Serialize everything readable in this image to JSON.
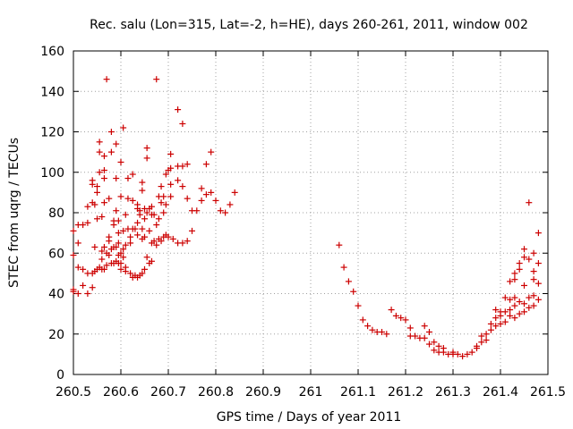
{
  "chart_data": {
    "type": "scatter",
    "title": "Rec. salu (Lon=315, Lat=-2, h=HE), days 260-261, 2011, window 002",
    "xlabel": "GPS time / Days of year 2011",
    "ylabel": "STEC from uqrg / TECUs",
    "xlim": [
      260.5,
      261.5
    ],
    "ylim": [
      0,
      160
    ],
    "grid": true,
    "marker": "+",
    "color": "#cc0000",
    "x_ticks": [
      "260.5",
      "260.6",
      "260.7",
      "260.8",
      "260.9",
      "261",
      "261.1",
      "261.2",
      "261.3",
      "261.4",
      "261.5"
    ],
    "y_ticks": [
      "0",
      "20",
      "40",
      "60",
      "80",
      "100",
      "120",
      "140",
      "160"
    ],
    "points": [
      [
        260.5,
        41
      ],
      [
        260.5,
        42
      ],
      [
        260.5,
        59
      ],
      [
        260.5,
        71
      ],
      [
        260.51,
        40
      ],
      [
        260.51,
        53
      ],
      [
        260.51,
        65
      ],
      [
        260.51,
        74
      ],
      [
        260.52,
        44
      ],
      [
        260.52,
        52
      ],
      [
        260.52,
        74
      ],
      [
        260.53,
        40
      ],
      [
        260.53,
        50
      ],
      [
        260.53,
        75
      ],
      [
        260.53,
        83
      ],
      [
        260.54,
        43
      ],
      [
        260.54,
        50
      ],
      [
        260.54,
        85
      ],
      [
        260.54,
        94
      ],
      [
        260.54,
        96
      ],
      [
        260.545,
        51
      ],
      [
        260.545,
        63
      ],
      [
        260.545,
        84
      ],
      [
        260.55,
        52
      ],
      [
        260.55,
        77
      ],
      [
        260.55,
        90
      ],
      [
        260.55,
        93
      ],
      [
        260.555,
        53
      ],
      [
        260.555,
        100
      ],
      [
        260.555,
        110
      ],
      [
        260.555,
        115
      ],
      [
        260.56,
        52
      ],
      [
        260.56,
        57
      ],
      [
        260.56,
        61
      ],
      [
        260.56,
        78
      ],
      [
        260.565,
        52
      ],
      [
        260.565,
        63
      ],
      [
        260.565,
        85
      ],
      [
        260.565,
        97
      ],
      [
        260.565,
        101
      ],
      [
        260.565,
        108
      ],
      [
        260.57,
        54
      ],
      [
        260.57,
        60
      ],
      [
        260.57,
        146
      ],
      [
        260.575,
        59
      ],
      [
        260.575,
        66
      ],
      [
        260.575,
        68
      ],
      [
        260.575,
        87
      ],
      [
        260.58,
        55
      ],
      [
        260.58,
        62
      ],
      [
        260.58,
        110
      ],
      [
        260.58,
        120
      ],
      [
        260.585,
        55
      ],
      [
        260.585,
        63
      ],
      [
        260.585,
        74
      ],
      [
        260.585,
        76
      ],
      [
        260.59,
        56
      ],
      [
        260.59,
        63
      ],
      [
        260.59,
        81
      ],
      [
        260.59,
        97
      ],
      [
        260.59,
        114
      ],
      [
        260.595,
        55
      ],
      [
        260.595,
        59
      ],
      [
        260.595,
        65
      ],
      [
        260.595,
        70
      ],
      [
        260.595,
        76
      ],
      [
        260.6,
        52
      ],
      [
        260.6,
        55
      ],
      [
        260.6,
        60
      ],
      [
        260.6,
        88
      ],
      [
        260.6,
        105
      ],
      [
        260.605,
        58
      ],
      [
        260.605,
        62
      ],
      [
        260.605,
        71
      ],
      [
        260.605,
        122
      ],
      [
        260.61,
        51
      ],
      [
        260.61,
        53
      ],
      [
        260.61,
        64
      ],
      [
        260.61,
        79
      ],
      [
        260.615,
        72
      ],
      [
        260.615,
        87
      ],
      [
        260.615,
        97
      ],
      [
        260.62,
        50
      ],
      [
        260.62,
        65
      ],
      [
        260.62,
        68
      ],
      [
        260.625,
        48
      ],
      [
        260.625,
        72
      ],
      [
        260.625,
        86
      ],
      [
        260.625,
        99
      ],
      [
        260.63,
        49
      ],
      [
        260.63,
        72
      ],
      [
        260.635,
        48
      ],
      [
        260.635,
        69
      ],
      [
        260.635,
        75
      ],
      [
        260.635,
        82
      ],
      [
        260.635,
        84
      ],
      [
        260.64,
        49
      ],
      [
        260.64,
        79
      ],
      [
        260.64,
        81
      ],
      [
        260.645,
        50
      ],
      [
        260.645,
        67
      ],
      [
        260.645,
        72
      ],
      [
        260.645,
        91
      ],
      [
        260.645,
        95
      ],
      [
        260.65,
        52
      ],
      [
        260.65,
        68
      ],
      [
        260.65,
        77
      ],
      [
        260.65,
        82
      ],
      [
        260.655,
        58
      ],
      [
        260.655,
        80
      ],
      [
        260.655,
        107
      ],
      [
        260.655,
        112
      ],
      [
        260.66,
        55
      ],
      [
        260.66,
        71
      ],
      [
        260.66,
        82
      ],
      [
        260.665,
        56
      ],
      [
        260.665,
        65
      ],
      [
        260.665,
        79
      ],
      [
        260.665,
        83
      ],
      [
        260.67,
        66
      ],
      [
        260.67,
        79
      ],
      [
        260.675,
        64
      ],
      [
        260.675,
        74
      ],
      [
        260.675,
        146
      ],
      [
        260.68,
        67
      ],
      [
        260.68,
        77
      ],
      [
        260.68,
        88
      ],
      [
        260.685,
        66
      ],
      [
        260.685,
        85
      ],
      [
        260.685,
        93
      ],
      [
        260.69,
        68
      ],
      [
        260.69,
        80
      ],
      [
        260.69,
        88
      ],
      [
        260.695,
        69
      ],
      [
        260.695,
        84
      ],
      [
        260.695,
        99
      ],
      [
        260.7,
        68
      ],
      [
        260.7,
        101
      ],
      [
        260.705,
        88
      ],
      [
        260.705,
        102
      ],
      [
        260.705,
        109
      ],
      [
        260.705,
        94
      ],
      [
        260.71,
        67
      ],
      [
        260.72,
        65
      ],
      [
        260.72,
        96
      ],
      [
        260.72,
        103
      ],
      [
        260.72,
        131
      ],
      [
        260.73,
        65
      ],
      [
        260.73,
        93
      ],
      [
        260.73,
        103
      ],
      [
        260.73,
        124
      ],
      [
        260.74,
        66
      ],
      [
        260.74,
        104
      ],
      [
        260.74,
        87
      ],
      [
        260.75,
        71
      ],
      [
        260.75,
        81
      ],
      [
        260.76,
        81
      ],
      [
        260.77,
        92
      ],
      [
        260.77,
        86
      ],
      [
        260.78,
        104
      ],
      [
        260.78,
        89
      ],
      [
        260.79,
        110
      ],
      [
        260.79,
        90
      ],
      [
        260.8,
        86
      ],
      [
        260.81,
        81
      ],
      [
        260.82,
        80
      ],
      [
        260.83,
        84
      ],
      [
        260.84,
        90
      ],
      [
        261.06,
        64
      ],
      [
        261.07,
        53
      ],
      [
        261.08,
        46
      ],
      [
        261.09,
        41
      ],
      [
        261.1,
        34
      ],
      [
        261.11,
        27
      ],
      [
        261.12,
        24
      ],
      [
        261.13,
        22
      ],
      [
        261.14,
        21
      ],
      [
        261.15,
        21
      ],
      [
        261.16,
        20
      ],
      [
        261.17,
        32
      ],
      [
        261.18,
        29
      ],
      [
        261.19,
        28
      ],
      [
        261.2,
        27
      ],
      [
        261.21,
        23
      ],
      [
        261.21,
        19
      ],
      [
        261.22,
        19
      ],
      [
        261.23,
        18
      ],
      [
        261.24,
        18
      ],
      [
        261.24,
        24
      ],
      [
        261.25,
        21
      ],
      [
        261.25,
        15
      ],
      [
        261.26,
        16
      ],
      [
        261.26,
        12
      ],
      [
        261.27,
        14
      ],
      [
        261.27,
        11
      ],
      [
        261.28,
        11
      ],
      [
        261.28,
        13
      ],
      [
        261.29,
        10
      ],
      [
        261.3,
        10
      ],
      [
        261.3,
        11
      ],
      [
        261.31,
        10
      ],
      [
        261.32,
        9
      ],
      [
        261.33,
        10
      ],
      [
        261.34,
        11
      ],
      [
        261.35,
        13
      ],
      [
        261.35,
        14
      ],
      [
        261.36,
        16
      ],
      [
        261.36,
        19
      ],
      [
        261.37,
        17
      ],
      [
        261.37,
        20
      ],
      [
        261.38,
        22
      ],
      [
        261.38,
        25
      ],
      [
        261.39,
        24
      ],
      [
        261.39,
        28
      ],
      [
        261.39,
        32
      ],
      [
        261.4,
        25
      ],
      [
        261.4,
        29
      ],
      [
        261.4,
        31
      ],
      [
        261.41,
        26
      ],
      [
        261.41,
        31
      ],
      [
        261.41,
        38
      ],
      [
        261.42,
        29
      ],
      [
        261.42,
        32
      ],
      [
        261.42,
        37
      ],
      [
        261.42,
        46
      ],
      [
        261.43,
        28
      ],
      [
        261.43,
        34
      ],
      [
        261.43,
        38
      ],
      [
        261.43,
        47
      ],
      [
        261.43,
        50
      ],
      [
        261.44,
        30
      ],
      [
        261.44,
        36
      ],
      [
        261.44,
        52
      ],
      [
        261.44,
        55
      ],
      [
        261.45,
        31
      ],
      [
        261.45,
        35
      ],
      [
        261.45,
        44
      ],
      [
        261.45,
        58
      ],
      [
        261.45,
        62
      ],
      [
        261.46,
        33
      ],
      [
        261.46,
        38
      ],
      [
        261.46,
        57
      ],
      [
        261.46,
        85
      ],
      [
        261.47,
        34
      ],
      [
        261.47,
        39
      ],
      [
        261.47,
        47
      ],
      [
        261.47,
        51
      ],
      [
        261.47,
        60
      ],
      [
        261.48,
        37
      ],
      [
        261.48,
        45
      ],
      [
        261.48,
        55
      ],
      [
        261.48,
        70
      ]
    ]
  }
}
